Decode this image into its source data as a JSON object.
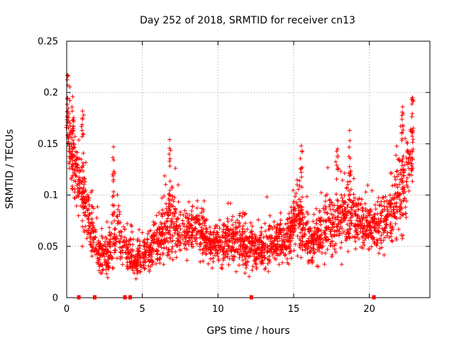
{
  "chart_data": {
    "type": "scatter",
    "title": "Day 252 of 2018, SRMTID for receiver cn13",
    "xlabel": "GPS time / hours",
    "ylabel": "SRMTID / TECUs",
    "xlim": [
      0,
      24
    ],
    "ylim": [
      0,
      0.25
    ],
    "x_ticks": [
      0,
      5,
      10,
      15,
      20
    ],
    "x_tick_labels": [
      "0",
      "5",
      "10",
      "15",
      "20"
    ],
    "y_ticks": [
      0,
      0.05,
      0.1,
      0.15,
      0.2,
      0.25
    ],
    "y_tick_labels": [
      "0",
      "0.05",
      "0.1",
      "0.15",
      "0.2",
      "0.25"
    ],
    "grid": true,
    "marker": "plus",
    "color": "#ff0000",
    "series": [
      {
        "name": "SRMTID",
        "profile": [
          {
            "x": 0.0,
            "y": 0.175,
            "spread": 0.04
          },
          {
            "x": 0.5,
            "y": 0.13,
            "spread": 0.04
          },
          {
            "x": 1.0,
            "y": 0.105,
            "spread": 0.04
          },
          {
            "x": 1.5,
            "y": 0.075,
            "spread": 0.03
          },
          {
            "x": 2.0,
            "y": 0.045,
            "spread": 0.02
          },
          {
            "x": 2.7,
            "y": 0.04,
            "spread": 0.02
          },
          {
            "x": 3.0,
            "y": 0.06,
            "spread": 0.035
          },
          {
            "x": 3.4,
            "y": 0.065,
            "spread": 0.03
          },
          {
            "x": 4.0,
            "y": 0.045,
            "spread": 0.02
          },
          {
            "x": 4.5,
            "y": 0.035,
            "spread": 0.015
          },
          {
            "x": 5.0,
            "y": 0.04,
            "spread": 0.02
          },
          {
            "x": 6.0,
            "y": 0.055,
            "spread": 0.025
          },
          {
            "x": 6.8,
            "y": 0.075,
            "spread": 0.045
          },
          {
            "x": 7.5,
            "y": 0.06,
            "spread": 0.025
          },
          {
            "x": 8.5,
            "y": 0.07,
            "spread": 0.025
          },
          {
            "x": 9.5,
            "y": 0.05,
            "spread": 0.02
          },
          {
            "x": 10.5,
            "y": 0.055,
            "spread": 0.025
          },
          {
            "x": 11.5,
            "y": 0.055,
            "spread": 0.03
          },
          {
            "x": 12.5,
            "y": 0.045,
            "spread": 0.02
          },
          {
            "x": 13.5,
            "y": 0.05,
            "spread": 0.02
          },
          {
            "x": 14.5,
            "y": 0.055,
            "spread": 0.025
          },
          {
            "x": 15.3,
            "y": 0.08,
            "spread": 0.035
          },
          {
            "x": 16.0,
            "y": 0.05,
            "spread": 0.02
          },
          {
            "x": 17.0,
            "y": 0.065,
            "spread": 0.03
          },
          {
            "x": 18.5,
            "y": 0.08,
            "spread": 0.035
          },
          {
            "x": 19.5,
            "y": 0.07,
            "spread": 0.025
          },
          {
            "x": 20.5,
            "y": 0.065,
            "spread": 0.025
          },
          {
            "x": 21.5,
            "y": 0.08,
            "spread": 0.035
          },
          {
            "x": 22.5,
            "y": 0.12,
            "spread": 0.05
          },
          {
            "x": 22.9,
            "y": 0.15,
            "spread": 0.045
          }
        ],
        "spikes": [
          {
            "x": 0.05,
            "y": 0.217
          },
          {
            "x": 0.4,
            "y": 0.196
          },
          {
            "x": 1.05,
            "y": 0.182
          },
          {
            "x": 3.1,
            "y": 0.147
          },
          {
            "x": 6.8,
            "y": 0.154
          },
          {
            "x": 15.5,
            "y": 0.148
          },
          {
            "x": 17.9,
            "y": 0.145
          },
          {
            "x": 18.7,
            "y": 0.163
          },
          {
            "x": 22.2,
            "y": 0.186
          },
          {
            "x": 22.85,
            "y": 0.195
          }
        ],
        "zero_values_x": [
          0.8,
          1.85,
          3.85,
          4.2,
          12.2,
          20.3
        ]
      }
    ]
  }
}
